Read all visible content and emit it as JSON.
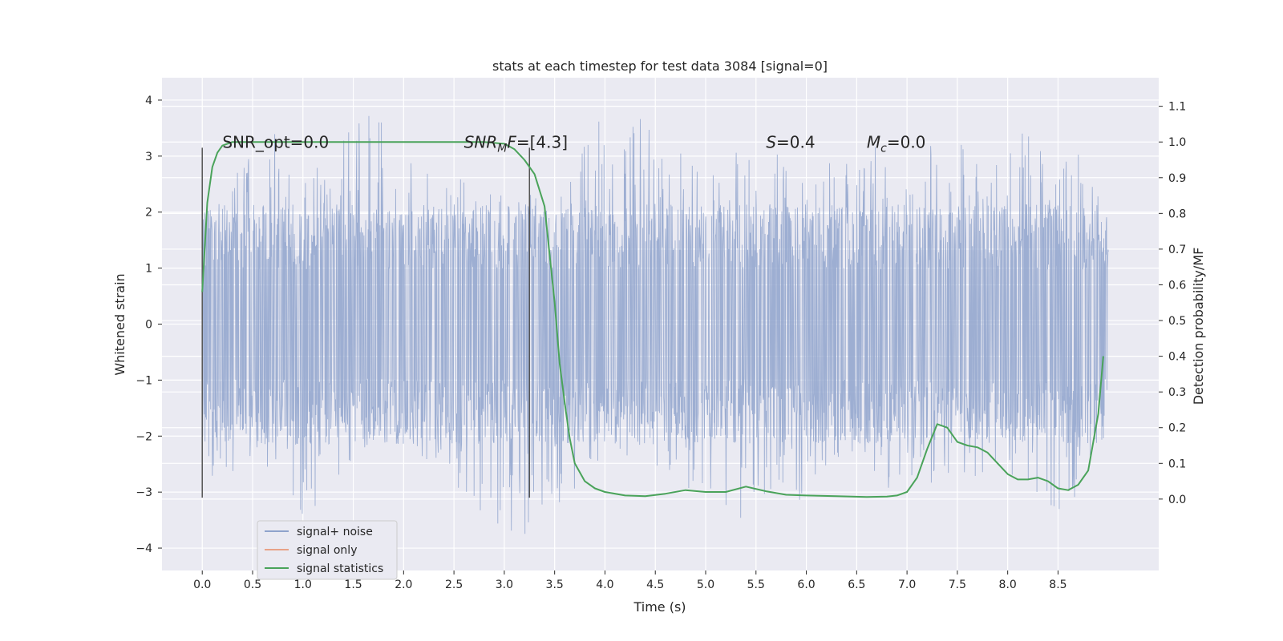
{
  "chart_data": {
    "type": "line",
    "title": "stats at each timestep for test data 3084 [signal=0]",
    "xlabel": "Time (s)",
    "ylabel": "Whitened strain",
    "ylabel_right": "Detection probability/MF",
    "xlim": [
      -0.4,
      9.5
    ],
    "ylim": [
      -4.4,
      4.4
    ],
    "ylim_right": [
      -0.2,
      1.18
    ],
    "x_ticks": [
      "0.0",
      "0.5",
      "1.0",
      "1.5",
      "2.0",
      "2.5",
      "3.0",
      "3.5",
      "4.0",
      "4.5",
      "5.0",
      "5.5",
      "6.0",
      "6.5",
      "7.0",
      "7.5",
      "8.0",
      "8.5"
    ],
    "y_ticks": [
      "4",
      "3",
      "2",
      "1",
      "0",
      "−1",
      "−2",
      "−3",
      "−4"
    ],
    "y_ticks_right": [
      "1.1",
      "1.0",
      "0.9",
      "0.8",
      "0.7",
      "0.6",
      "0.5",
      "0.4",
      "0.3",
      "0.2",
      "0.1",
      "0.0"
    ],
    "grid": true,
    "legend": {
      "position": "lower-left",
      "entries": [
        {
          "label": "signal+ noise",
          "color": "#8fa3cc"
        },
        {
          "label": "signal only",
          "color": "#e8a287"
        },
        {
          "label": "signal statistics",
          "color": "#4aa35a"
        }
      ]
    },
    "annotations": [
      {
        "id": "snr-opt",
        "text": "SNR_opt=0.0",
        "x": 0.2
      },
      {
        "id": "snr-mf",
        "text": "SNR",
        "sub": "M",
        "tail": "F=[4.3]",
        "x": 2.6
      },
      {
        "id": "s-param",
        "text": "S",
        "tail": "=0.4",
        "x": 5.6
      },
      {
        "id": "mc-param",
        "text": "M",
        "sub": "c",
        "tail": "=0.0",
        "x": 6.6
      }
    ],
    "vlines": [
      {
        "x": 0.0,
        "ymin": -3.1,
        "ymax": 3.15
      },
      {
        "x": 3.25,
        "ymin": -3.1,
        "ymax": 3.15
      }
    ],
    "series": [
      {
        "name": "signal+ noise",
        "axis": "left",
        "color": "#8fa3cc",
        "x_range": [
          0.0,
          9.0
        ],
        "envelope_core": [
          -1.3,
          1.3
        ],
        "peaks": [
          [
            0.0,
            2.2,
            -2.8
          ],
          [
            0.6,
            3.3,
            -2.6
          ],
          [
            0.73,
            3.5,
            -3.3
          ],
          [
            0.9,
            2.8,
            -3.6
          ],
          [
            1.23,
            2.9,
            -3.1
          ],
          [
            1.42,
            3.9,
            -2.5
          ],
          [
            1.83,
            4.0,
            -2.2
          ],
          [
            2.05,
            2.9,
            -2.1
          ],
          [
            2.6,
            2.6,
            -3.3
          ],
          [
            3.2,
            2.2,
            -3.8
          ],
          [
            4.05,
            4.0,
            -2.4
          ],
          [
            4.6,
            3.4,
            -2.6
          ],
          [
            5.05,
            2.6,
            -3.5
          ],
          [
            5.3,
            3.2,
            -3.7
          ],
          [
            5.7,
            3.3,
            -3.5
          ],
          [
            6.1,
            2.8,
            -2.9
          ],
          [
            6.5,
            3.3,
            -2.3
          ],
          [
            6.95,
            3.0,
            -3.4
          ],
          [
            7.3,
            3.3,
            -3.0
          ],
          [
            7.9,
            3.1,
            -2.6
          ],
          [
            8.2,
            3.6,
            -2.9
          ],
          [
            8.48,
            3.0,
            -4.0
          ],
          [
            8.8,
            3.1,
            -2.6
          ],
          [
            9.0,
            1.6,
            -1.9
          ]
        ]
      },
      {
        "name": "signal only",
        "axis": "left",
        "color": "#e8a287",
        "x": [],
        "y": []
      },
      {
        "name": "signal statistics",
        "axis": "right",
        "color": "#4aa35a",
        "x": [
          0.0,
          0.05,
          0.1,
          0.15,
          0.2,
          0.3,
          0.5,
          1.0,
          2.0,
          2.8,
          3.0,
          3.1,
          3.2,
          3.3,
          3.4,
          3.5,
          3.55,
          3.6,
          3.65,
          3.7,
          3.8,
          3.9,
          4.0,
          4.2,
          4.4,
          4.6,
          4.8,
          5.0,
          5.2,
          5.4,
          5.6,
          5.8,
          6.0,
          6.3,
          6.6,
          6.8,
          6.9,
          7.0,
          7.1,
          7.2,
          7.3,
          7.4,
          7.5,
          7.6,
          7.7,
          7.8,
          7.9,
          8.0,
          8.1,
          8.2,
          8.3,
          8.4,
          8.5,
          8.6,
          8.7,
          8.8,
          8.9,
          8.95
        ],
        "y": [
          0.58,
          0.83,
          0.93,
          0.97,
          0.99,
          1.0,
          1.0,
          1.0,
          1.0,
          1.0,
          0.995,
          0.98,
          0.95,
          0.91,
          0.82,
          0.55,
          0.38,
          0.27,
          0.17,
          0.1,
          0.05,
          0.03,
          0.02,
          0.01,
          0.008,
          0.015,
          0.025,
          0.02,
          0.02,
          0.035,
          0.022,
          0.012,
          0.01,
          0.008,
          0.006,
          0.007,
          0.01,
          0.02,
          0.06,
          0.14,
          0.21,
          0.2,
          0.16,
          0.15,
          0.145,
          0.13,
          0.1,
          0.07,
          0.055,
          0.055,
          0.06,
          0.05,
          0.03,
          0.025,
          0.04,
          0.08,
          0.24,
          0.4
        ]
      }
    ]
  }
}
